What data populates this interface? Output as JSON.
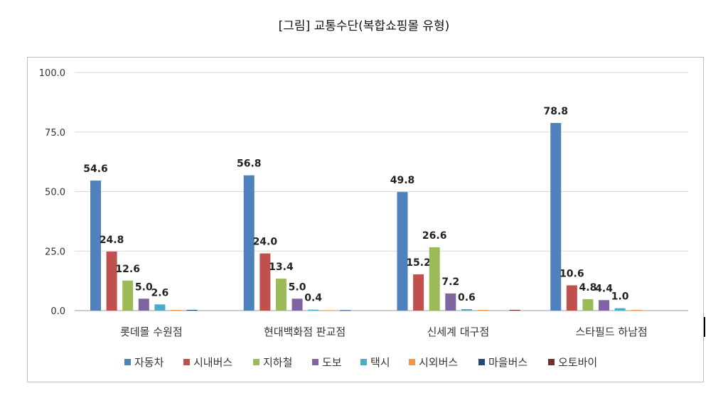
{
  "title": "[그림] 교통수단(복합쇼핑몰 유형)",
  "chart_data": {
    "type": "bar",
    "categories": [
      "롯데몰 수원점",
      "현대백화점 판교점",
      "신세계 대구점",
      "스타필드 하남점"
    ],
    "series": [
      {
        "name": "자동차",
        "color": "#4f81bd",
        "values": [
          54.6,
          56.8,
          49.8,
          78.8
        ],
        "labels": [
          "54.6",
          "56.8",
          "49.8",
          "78.8"
        ]
      },
      {
        "name": "시내버스",
        "color": "#c0504d",
        "values": [
          24.8,
          24.0,
          15.2,
          10.6
        ],
        "labels": [
          "24.8",
          "24.0",
          "15.2",
          "10.6"
        ]
      },
      {
        "name": "지하철",
        "color": "#9bbb59",
        "values": [
          12.6,
          13.4,
          26.6,
          4.8
        ],
        "labels": [
          "12.6",
          "13.4",
          "26.6",
          "4.8"
        ]
      },
      {
        "name": "도보",
        "color": "#8064a2",
        "values": [
          5.0,
          5.0,
          7.2,
          4.4
        ],
        "labels": [
          "5.0",
          "5.0",
          "7.2",
          "4.4"
        ]
      },
      {
        "name": "택시",
        "color": "#4bacc6",
        "values": [
          2.6,
          0.4,
          0.6,
          1.0
        ],
        "labels": [
          "2.6",
          "0.4",
          "0.6",
          "1.0"
        ]
      },
      {
        "name": "시외버스",
        "color": "#f79646",
        "values": [
          0.3,
          0.2,
          0.3,
          0.3
        ],
        "labels": [
          "",
          "",
          "",
          ""
        ]
      },
      {
        "name": "마을버스",
        "color": "#1f497d",
        "values": [
          0.3,
          0.2,
          0.0,
          0.0
        ],
        "labels": [
          "",
          "",
          "",
          ""
        ]
      },
      {
        "name": "오토바이",
        "color": "#772c2a",
        "values": [
          0.0,
          0.0,
          0.3,
          0.0
        ],
        "labels": [
          "",
          "",
          "",
          ""
        ]
      }
    ],
    "yticks": [
      "0.0",
      "25.0",
      "50.0",
      "75.0",
      "100.0"
    ],
    "ylim": [
      0,
      100
    ],
    "grid": true,
    "legend_position": "bottom"
  }
}
